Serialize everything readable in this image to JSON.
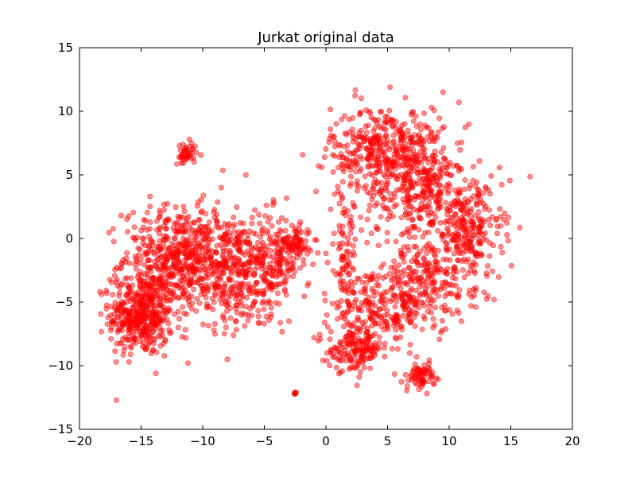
{
  "chart_data": {
    "type": "scatter",
    "title": "Jurkat original data",
    "xlabel": "",
    "ylabel": "",
    "xlim": [
      -20,
      20
    ],
    "ylim": [
      -15,
      15
    ],
    "xticks": [
      -20,
      -15,
      -10,
      -5,
      0,
      5,
      10,
      15,
      20
    ],
    "yticks": [
      -15,
      -10,
      -5,
      0,
      5,
      10,
      15
    ],
    "grid": false,
    "marker_color": "#ff0000",
    "marker_opacity": 0.45,
    "series": [
      {
        "clusters": [
          {
            "center": [
              -15.0,
              -6.0
            ],
            "spread": [
              1.3,
              1.6
            ],
            "count": 420
          },
          {
            "center": [
              -12.0,
              -1.5
            ],
            "spread": [
              2.2,
              2.0
            ],
            "count": 500
          },
          {
            "center": [
              -8.0,
              -2.5
            ],
            "spread": [
              1.8,
              2.2
            ],
            "count": 300
          },
          {
            "center": [
              -4.5,
              -2.0
            ],
            "spread": [
              1.2,
              2.0
            ],
            "count": 220
          },
          {
            "center": [
              -2.5,
              -0.3
            ],
            "spread": [
              0.7,
              0.6
            ],
            "count": 80
          },
          {
            "center": [
              -11.3,
              6.6
            ],
            "spread": [
              0.4,
              0.5
            ],
            "count": 45
          },
          {
            "center": [
              -2.5,
              -12.2
            ],
            "spread": [
              0.05,
              0.05
            ],
            "count": 8
          },
          {
            "center": [
              5.0,
              7.0
            ],
            "spread": [
              2.3,
              1.7
            ],
            "count": 420
          },
          {
            "center": [
              8.0,
              3.5
            ],
            "spread": [
              2.5,
              1.8
            ],
            "count": 300
          },
          {
            "center": [
              11.5,
              0.5
            ],
            "spread": [
              1.4,
              2.0
            ],
            "count": 220
          },
          {
            "center": [
              8.0,
              -3.5
            ],
            "spread": [
              2.3,
              1.8
            ],
            "count": 260
          },
          {
            "center": [
              4.0,
              -6.0
            ],
            "spread": [
              1.8,
              1.5
            ],
            "count": 200
          },
          {
            "center": [
              2.3,
              -8.8
            ],
            "spread": [
              1.1,
              0.8
            ],
            "count": 140
          },
          {
            "center": [
              1.5,
              -1.5
            ],
            "spread": [
              0.6,
              2.5
            ],
            "count": 90
          },
          {
            "center": [
              7.8,
              -10.8
            ],
            "spread": [
              0.5,
              0.5
            ],
            "count": 70
          }
        ],
        "points": [
          [
            9.5,
            11.5
          ],
          [
            10.8,
            10.7
          ],
          [
            -0.1,
            6.4
          ],
          [
            -0.6,
            5.7
          ],
          [
            -0.8,
            3.7
          ],
          [
            -6.5,
            5.0
          ],
          [
            -8.5,
            4.0
          ],
          [
            -0.1,
            -6.6
          ],
          [
            -3.0,
            -6.5
          ],
          [
            -1.5,
            -3.7
          ],
          [
            -11.2,
            -9.8
          ],
          [
            -17.8,
            -4.3
          ],
          [
            13.9,
            0.4
          ],
          [
            11.0,
            -6.5
          ],
          [
            12.0,
            -4.0
          ],
          [
            2.8,
            -10.5
          ],
          [
            6.6,
            -11.6
          ],
          [
            -8.0,
            -9.5
          ]
        ]
      }
    ]
  }
}
